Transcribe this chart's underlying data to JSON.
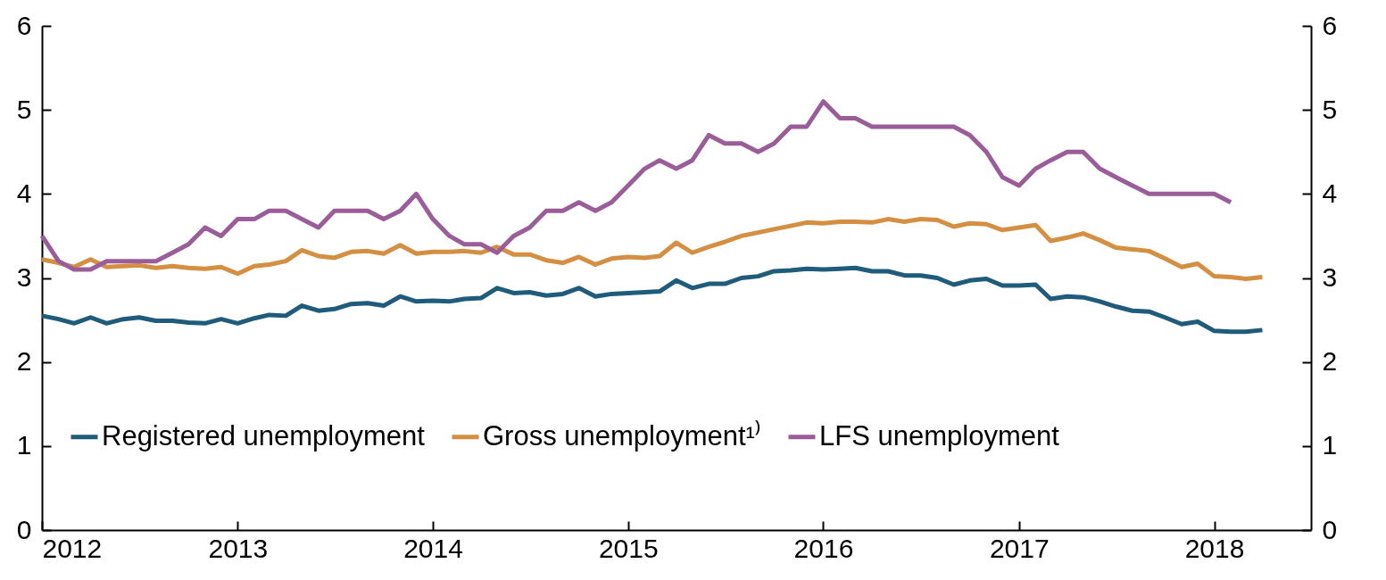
{
  "chart_data": {
    "type": "line",
    "x": [
      "2012-01",
      "2012-02",
      "2012-03",
      "2012-04",
      "2012-05",
      "2012-06",
      "2012-07",
      "2012-08",
      "2012-09",
      "2012-10",
      "2012-11",
      "2012-12",
      "2013-01",
      "2013-02",
      "2013-03",
      "2013-04",
      "2013-05",
      "2013-06",
      "2013-07",
      "2013-08",
      "2013-09",
      "2013-10",
      "2013-11",
      "2013-12",
      "2014-01",
      "2014-02",
      "2014-03",
      "2014-04",
      "2014-05",
      "2014-06",
      "2014-07",
      "2014-08",
      "2014-09",
      "2014-10",
      "2014-11",
      "2014-12",
      "2015-01",
      "2015-02",
      "2015-03",
      "2015-04",
      "2015-05",
      "2015-06",
      "2015-07",
      "2015-08",
      "2015-09",
      "2015-10",
      "2015-11",
      "2015-12",
      "2016-01",
      "2016-02",
      "2016-03",
      "2016-04",
      "2016-05",
      "2016-06",
      "2016-07",
      "2016-08",
      "2016-09",
      "2016-10",
      "2016-11",
      "2016-12",
      "2017-01",
      "2017-02",
      "2017-03",
      "2017-04",
      "2017-05",
      "2017-06",
      "2017-07",
      "2017-08",
      "2017-09",
      "2017-10",
      "2017-11",
      "2017-12",
      "2018-01",
      "2018-02",
      "2018-03",
      "2018-04"
    ],
    "series": [
      {
        "name": "Registered unemployment",
        "color": "#1f5b7a",
        "values": [
          2.55,
          2.51,
          2.46,
          2.53,
          2.46,
          2.51,
          2.53,
          2.49,
          2.49,
          2.47,
          2.46,
          2.51,
          2.46,
          2.52,
          2.56,
          2.55,
          2.67,
          2.61,
          2.63,
          2.69,
          2.7,
          2.67,
          2.78,
          2.72,
          2.73,
          2.72,
          2.75,
          2.76,
          2.88,
          2.82,
          2.83,
          2.79,
          2.81,
          2.88,
          2.78,
          2.81,
          2.82,
          2.83,
          2.84,
          2.97,
          2.88,
          2.93,
          2.93,
          3.0,
          3.02,
          3.08,
          3.09,
          3.11,
          3.1,
          3.11,
          3.12,
          3.08,
          3.08,
          3.03,
          3.03,
          3.0,
          2.92,
          2.97,
          2.99,
          2.91,
          2.91,
          2.92,
          2.75,
          2.78,
          2.77,
          2.72,
          2.66,
          2.61,
          2.6,
          2.53,
          2.45,
          2.48,
          2.37,
          2.36,
          2.36,
          2.38
        ]
      },
      {
        "name": "Gross unemployment¹⁾",
        "color": "#d48f42",
        "values": [
          3.22,
          3.18,
          3.13,
          3.22,
          3.13,
          3.14,
          3.15,
          3.12,
          3.14,
          3.12,
          3.11,
          3.13,
          3.05,
          3.14,
          3.16,
          3.2,
          3.33,
          3.26,
          3.24,
          3.31,
          3.32,
          3.29,
          3.39,
          3.29,
          3.31,
          3.31,
          3.32,
          3.3,
          3.37,
          3.28,
          3.28,
          3.21,
          3.18,
          3.25,
          3.16,
          3.23,
          3.25,
          3.24,
          3.26,
          3.42,
          3.3,
          3.37,
          3.43,
          3.5,
          3.54,
          3.58,
          3.62,
          3.66,
          3.65,
          3.67,
          3.67,
          3.66,
          3.7,
          3.67,
          3.7,
          3.69,
          3.61,
          3.65,
          3.64,
          3.57,
          3.6,
          3.63,
          3.44,
          3.48,
          3.53,
          3.45,
          3.36,
          3.34,
          3.32,
          3.23,
          3.13,
          3.17,
          3.02,
          3.01,
          2.99,
          3.01
        ]
      },
      {
        "name": "LFS unemployment",
        "color": "#9b5d99",
        "values": [
          3.5,
          3.2,
          3.1,
          3.1,
          3.2,
          3.2,
          3.2,
          3.2,
          3.3,
          3.4,
          3.6,
          3.5,
          3.7,
          3.7,
          3.8,
          3.8,
          3.7,
          3.6,
          3.8,
          3.8,
          3.8,
          3.7,
          3.8,
          4.0,
          3.7,
          3.5,
          3.4,
          3.4,
          3.3,
          3.5,
          3.6,
          3.8,
          3.8,
          3.9,
          3.8,
          3.9,
          4.1,
          4.3,
          4.4,
          4.3,
          4.4,
          4.7,
          4.6,
          4.6,
          4.5,
          4.6,
          4.8,
          4.8,
          5.1,
          4.9,
          4.9,
          4.8,
          4.8,
          4.8,
          4.8,
          4.8,
          4.8,
          4.7,
          4.5,
          4.2,
          4.1,
          4.3,
          4.4,
          4.5,
          4.5,
          4.3,
          4.2,
          4.1,
          4.0,
          4.0,
          4.0,
          4.0,
          4.0,
          3.9,
          null,
          null
        ]
      }
    ],
    "xlim": [
      "2012",
      "2018-07"
    ],
    "xticks": [
      {
        "value": "2012",
        "label": "2012"
      },
      {
        "value": "2013",
        "label": "2013"
      },
      {
        "value": "2014",
        "label": "2014"
      },
      {
        "value": "2015",
        "label": "2015"
      },
      {
        "value": "2016",
        "label": "2016"
      },
      {
        "value": "2017",
        "label": "2017"
      },
      {
        "value": "2018",
        "label": "2018"
      }
    ],
    "ylim": [
      0,
      6
    ],
    "yticks": [
      0,
      1,
      2,
      3,
      4,
      5,
      6
    ],
    "y2lim": [
      0,
      6
    ],
    "y2ticks": [
      0,
      1,
      2,
      3,
      4,
      5,
      6
    ],
    "grid": false,
    "legend": "bottom",
    "line_style": "solid"
  }
}
